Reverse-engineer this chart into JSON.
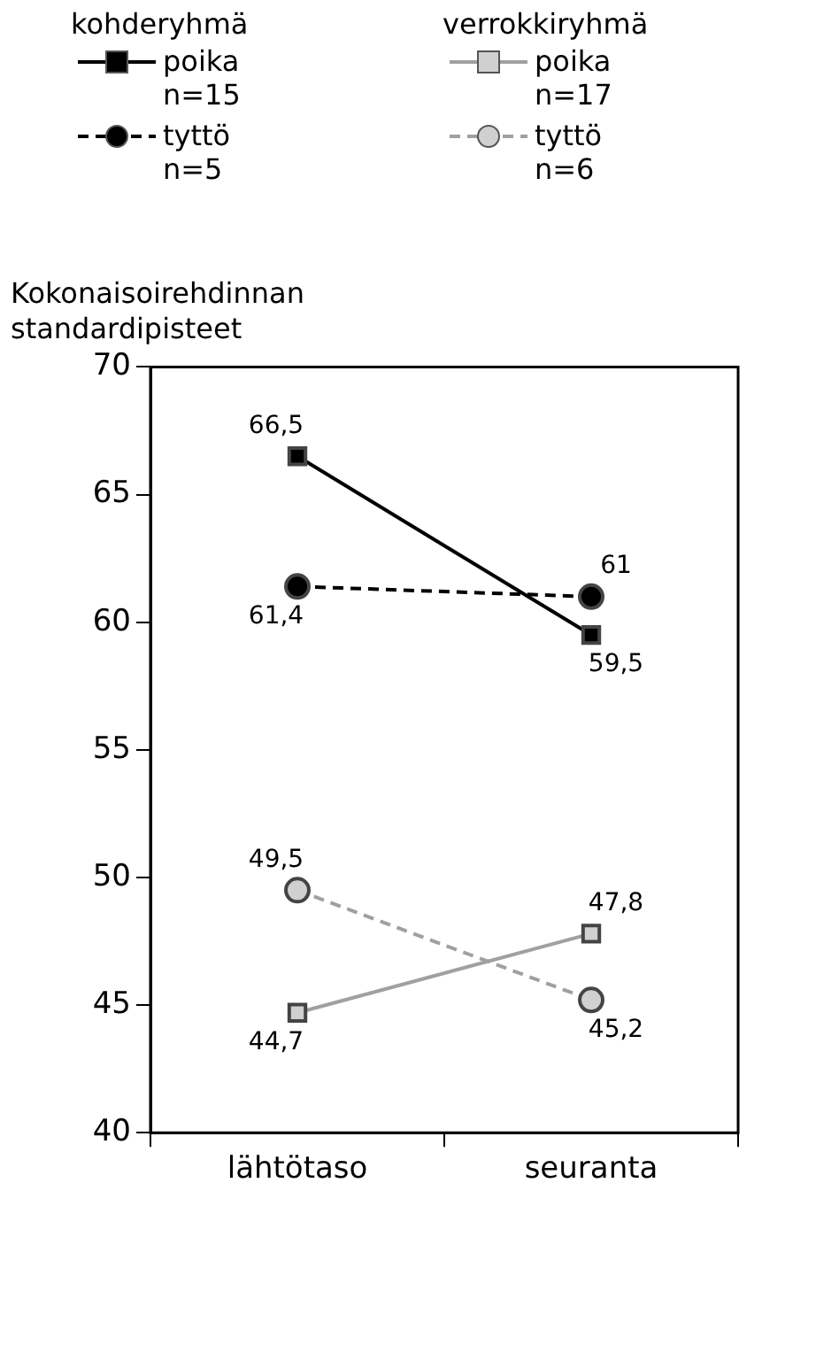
{
  "chart_data": {
    "type": "line",
    "ylabel": "Kokonaisoirehdinnan standardipisteet",
    "legend_title": [
      "kohderyhmä",
      "verrokkiryhmä"
    ],
    "categories": [
      "lähtötaso",
      "seuranta"
    ],
    "series": [
      {
        "name": "poika n=15",
        "color": "#000000",
        "values": [
          66.5,
          59.5
        ],
        "value_labels": [
          "66,5",
          "59,5"
        ],
        "marker": "square",
        "line_style": "solid"
      },
      {
        "name": "tyttö n=5",
        "color": "#000000",
        "values": [
          61.4,
          61
        ],
        "value_labels": [
          "61,4",
          "61"
        ],
        "marker": "circle",
        "line_style": "dashed"
      },
      {
        "name": "poika n=17",
        "color": "#a0a0a0",
        "values": [
          44.7,
          47.8
        ],
        "value_labels": [
          "44,7",
          "47,8"
        ],
        "marker": "square",
        "line_style": "solid"
      },
      {
        "name": "tyttö n=6",
        "color": "#a0a0a0",
        "values": [
          49.5,
          45.2
        ],
        "value_labels": [
          "49,5",
          "45,2"
        ],
        "marker": "circle",
        "line_style": "dashed"
      }
    ],
    "ylim": [
      40,
      70
    ],
    "yticks": [
      40,
      45,
      50,
      55,
      60,
      65,
      70
    ],
    "grid": false,
    "legend": "top"
  }
}
